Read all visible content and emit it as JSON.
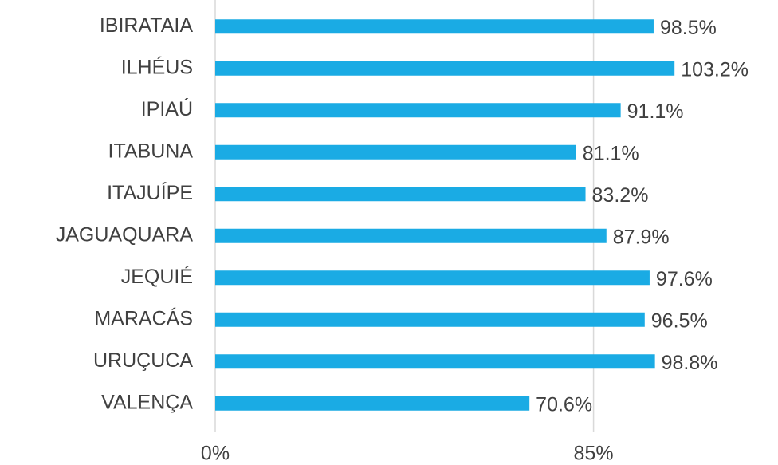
{
  "chart_data": {
    "type": "bar",
    "orientation": "horizontal",
    "categories": [
      "IBIRATAIA",
      "ILHÉUS",
      "IPIAÚ",
      "ITABUNA",
      "ITAJUÍPE",
      "JAGUAQUARA",
      "JEQUIÉ",
      "MARACÁS",
      "URUÇUCA",
      "VALENÇA"
    ],
    "values": [
      98.5,
      103.2,
      91.1,
      81.1,
      83.2,
      87.9,
      97.6,
      96.5,
      98.8,
      70.6
    ],
    "value_labels": [
      "98.5%",
      "103.2%",
      "91.1%",
      "81.1%",
      "83.2%",
      "87.9%",
      "97.6%",
      "96.5%",
      "98.8%",
      "70.6%"
    ],
    "color": "#1aabe4",
    "xlim": [
      0,
      120
    ],
    "xticks": [
      {
        "value": 0,
        "label": "0%"
      },
      {
        "value": 85,
        "label": "85%"
      }
    ],
    "grid": true
  }
}
